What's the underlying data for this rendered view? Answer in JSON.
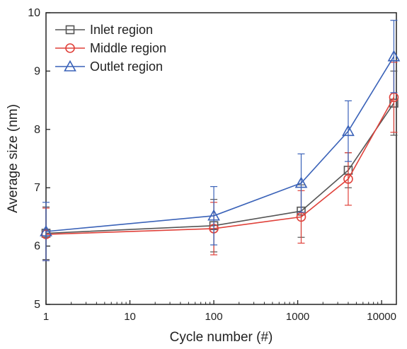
{
  "chart_data": {
    "type": "line",
    "title": "",
    "xlabel": "Cycle number (#)",
    "ylabel": "Average size (nm)",
    "xscale": "log",
    "xlim": [
      1,
      15000
    ],
    "ylim": [
      5,
      10
    ],
    "x": [
      1,
      100,
      1100,
      4000,
      14000
    ],
    "xticks": [
      1,
      10,
      100,
      1000,
      10000
    ],
    "xtick_labels": [
      "1",
      "10",
      "100",
      "1000",
      "10000"
    ],
    "yticks": [
      5,
      6,
      7,
      8,
      9,
      10
    ],
    "ytick_labels": [
      "5",
      "6",
      "7",
      "8",
      "9",
      "10"
    ],
    "grid": false,
    "legend_position": "top-left",
    "series": [
      {
        "name": "Inlet region",
        "color": "#555555",
        "marker": "square",
        "values": [
          6.22,
          6.35,
          6.6,
          7.3,
          8.45
        ],
        "errors": [
          0.45,
          0.45,
          0.45,
          0.3,
          0.55
        ]
      },
      {
        "name": "Middle region",
        "color": "#e0413a",
        "marker": "circle",
        "values": [
          6.2,
          6.3,
          6.5,
          7.15,
          8.55
        ],
        "errors": [
          0.45,
          0.45,
          0.45,
          0.45,
          0.6
        ]
      },
      {
        "name": "Outlet region",
        "color": "#3a62b8",
        "marker": "triangle",
        "values": [
          6.25,
          6.52,
          7.08,
          7.97,
          9.25
        ],
        "errors": [
          0.5,
          0.5,
          0.5,
          0.52,
          0.62
        ]
      }
    ]
  }
}
